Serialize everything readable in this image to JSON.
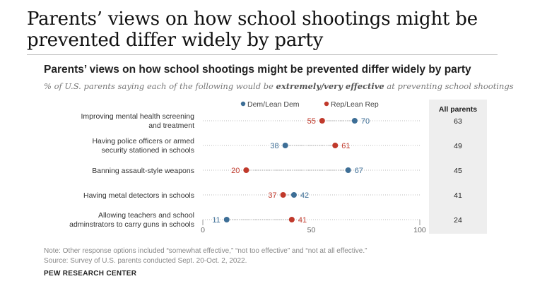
{
  "headline": "Parents’ views on how school shootings might be prevented differ widely by party",
  "chart_data": {
    "type": "dot",
    "title": "Parents’ views on how school shootings might be prevented differ widely by party",
    "subtitle_pre": "% of U.S. parents saying each of the following would be ",
    "subtitle_em": "extremely/very effective",
    "subtitle_post": " at preventing school shootings",
    "xlim": [
      0,
      100
    ],
    "xticks": [
      0,
      50,
      100
    ],
    "legend": [
      {
        "name": "Dem/Lean Dem",
        "color": "#3d6e96"
      },
      {
        "name": "Rep/Lean Rep",
        "color": "#c0392b"
      }
    ],
    "all_parents_header": "All parents",
    "items": [
      {
        "label": [
          "Improving mental health screening",
          "and treatment"
        ],
        "dem": 70,
        "rep": 55,
        "all": 63
      },
      {
        "label": [
          "Having police officers or armed",
          "security stationed in schools"
        ],
        "dem": 38,
        "rep": 61,
        "all": 49
      },
      {
        "label": [
          "Banning assault-style weapons"
        ],
        "dem": 67,
        "rep": 20,
        "all": 45
      },
      {
        "label": [
          "Having metal detectors in schools"
        ],
        "dem": 42,
        "rep": 37,
        "all": 41
      },
      {
        "label": [
          "Allowing teachers and school",
          "adminstrators to carry guns in schools"
        ],
        "dem": 11,
        "rep": 41,
        "all": 24
      }
    ]
  },
  "notes": {
    "note": "Note: Other response options included “somewhat effective,” “not too effective” and “not at all effective.”",
    "source": "Source: Survey of U.S. parents conducted Sept. 20-Oct. 2, 2022.",
    "brand": "PEW RESEARCH CENTER"
  }
}
